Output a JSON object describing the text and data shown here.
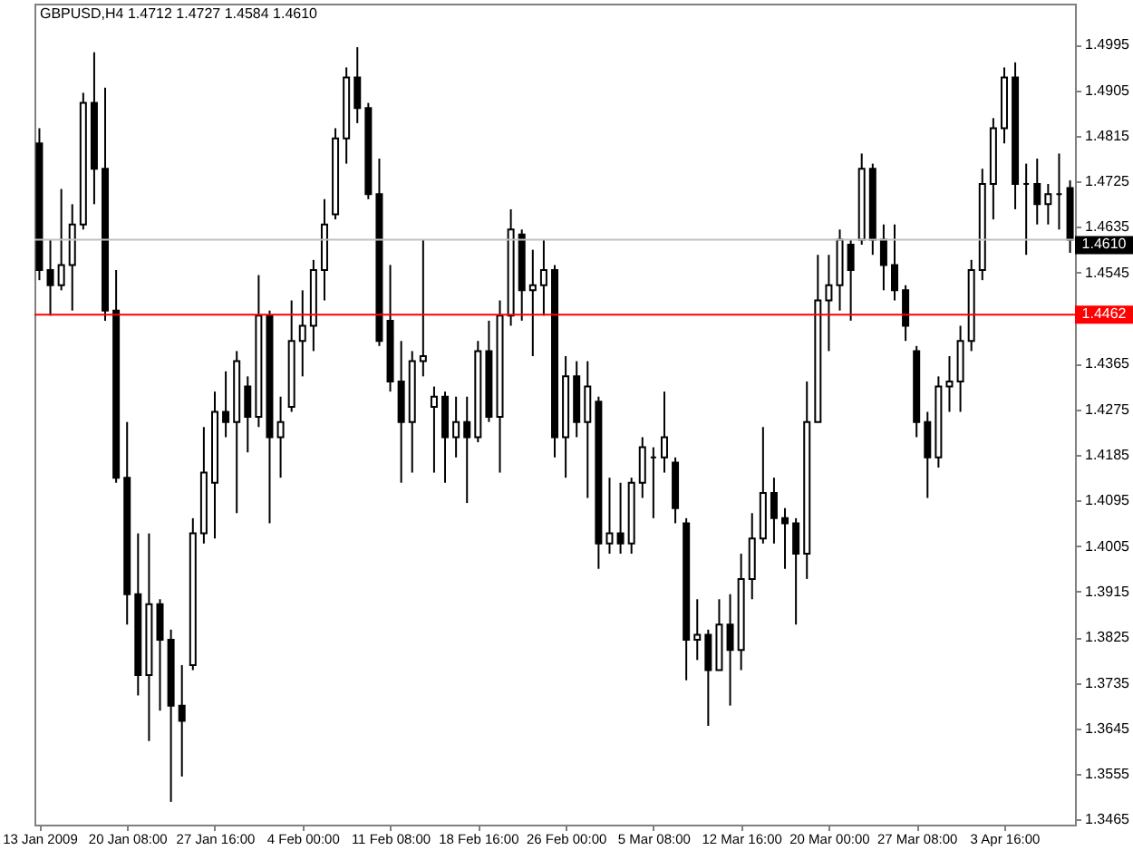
{
  "chart_data": {
    "type": "candlestick",
    "title": "GBPUSD,H4 1.4712 1.4727 1.4584 1.4610",
    "color": "#000000",
    "grid": false,
    "categories": [
      "13 Jan 2009",
      null,
      null,
      null,
      null,
      null,
      null,
      null,
      "20 Jan 08:00",
      null,
      null,
      null,
      null,
      null,
      null,
      null,
      "27 Jan 16:00",
      null,
      null,
      null,
      null,
      null,
      null,
      null,
      "4 Feb 00:00",
      null,
      null,
      null,
      null,
      null,
      null,
      null,
      "11 Feb 08:00",
      null,
      null,
      null,
      null,
      null,
      null,
      null,
      "18 Feb 16:00",
      null,
      null,
      null,
      null,
      null,
      null,
      null,
      "26 Feb 00:00",
      null,
      null,
      null,
      null,
      null,
      null,
      null,
      "5 Mar 08:00",
      null,
      null,
      null,
      null,
      null,
      null,
      null,
      "12 Mar 16:00",
      null,
      null,
      null,
      null,
      null,
      null,
      null,
      "20 Mar 00:00",
      null,
      null,
      null,
      null,
      null,
      null,
      null,
      "27 Mar 08:00",
      null,
      null,
      null,
      null,
      null,
      null,
      null,
      "3 Apr 16:00",
      null,
      null,
      null,
      null,
      null,
      null
    ],
    "ohlc": [
      [
        1.48,
        1.483,
        1.453,
        1.455
      ],
      [
        1.455,
        1.461,
        1.446,
        1.452
      ],
      [
        1.452,
        1.471,
        1.451,
        1.456
      ],
      [
        1.456,
        1.468,
        1.447,
        1.464
      ],
      [
        1.464,
        1.49,
        1.463,
        1.488
      ],
      [
        1.488,
        1.498,
        1.468,
        1.475
      ],
      [
        1.475,
        1.491,
        1.445,
        1.447
      ],
      [
        1.447,
        1.455,
        1.413,
        1.414
      ],
      [
        1.414,
        1.425,
        1.385,
        1.391
      ],
      [
        1.391,
        1.403,
        1.371,
        1.375
      ],
      [
        1.375,
        1.403,
        1.362,
        1.389
      ],
      [
        1.389,
        1.39,
        1.368,
        1.382
      ],
      [
        1.382,
        1.384,
        1.35,
        1.369
      ],
      [
        1.369,
        1.377,
        1.355,
        1.366
      ],
      [
        1.377,
        1.406,
        1.376,
        1.403
      ],
      [
        1.403,
        1.424,
        1.401,
        1.415
      ],
      [
        1.413,
        1.431,
        1.402,
        1.427
      ],
      [
        1.427,
        1.435,
        1.422,
        1.425
      ],
      [
        1.425,
        1.439,
        1.407,
        1.437
      ],
      [
        1.432,
        1.434,
        1.419,
        1.426
      ],
      [
        1.426,
        1.454,
        1.424,
        1.446
      ],
      [
        1.446,
        1.447,
        1.405,
        1.422
      ],
      [
        1.422,
        1.43,
        1.414,
        1.425
      ],
      [
        1.428,
        1.449,
        1.427,
        1.441
      ],
      [
        1.441,
        1.451,
        1.434,
        1.444
      ],
      [
        1.444,
        1.457,
        1.439,
        1.455
      ],
      [
        1.455,
        1.469,
        1.449,
        1.464
      ],
      [
        1.466,
        1.483,
        1.465,
        1.481
      ],
      [
        1.481,
        1.495,
        1.476,
        1.493
      ],
      [
        1.493,
        1.499,
        1.484,
        1.487
      ],
      [
        1.487,
        1.488,
        1.469,
        1.47
      ],
      [
        1.47,
        1.477,
        1.44,
        1.441
      ],
      [
        1.445,
        1.456,
        1.431,
        1.433
      ],
      [
        1.433,
        1.441,
        1.413,
        1.425
      ],
      [
        1.425,
        1.439,
        1.415,
        1.437
      ],
      [
        1.437,
        1.461,
        1.434,
        1.438
      ],
      [
        1.428,
        1.432,
        1.415,
        1.43
      ],
      [
        1.43,
        1.431,
        1.413,
        1.422
      ],
      [
        1.422,
        1.43,
        1.418,
        1.425
      ],
      [
        1.425,
        1.43,
        1.409,
        1.422
      ],
      [
        1.422,
        1.441,
        1.421,
        1.439
      ],
      [
        1.439,
        1.445,
        1.425,
        1.426
      ],
      [
        1.426,
        1.449,
        1.415,
        1.446
      ],
      [
        1.446,
        1.467,
        1.444,
        1.463
      ],
      [
        1.462,
        1.463,
        1.445,
        1.451
      ],
      [
        1.451,
        1.459,
        1.438,
        1.452
      ],
      [
        1.452,
        1.461,
        1.446,
        1.455
      ],
      [
        1.455,
        1.456,
        1.418,
        1.422
      ],
      [
        1.422,
        1.438,
        1.414,
        1.434
      ],
      [
        1.434,
        1.437,
        1.422,
        1.425
      ],
      [
        1.425,
        1.437,
        1.41,
        1.432
      ],
      [
        1.429,
        1.43,
        1.396,
        1.401
      ],
      [
        1.401,
        1.414,
        1.399,
        1.403
      ],
      [
        1.403,
        1.413,
        1.399,
        1.401
      ],
      [
        1.401,
        1.414,
        1.399,
        1.413
      ],
      [
        1.413,
        1.422,
        1.41,
        1.42
      ],
      [
        1.418,
        1.42,
        1.406,
        1.418
      ],
      [
        1.418,
        1.431,
        1.415,
        1.422
      ],
      [
        1.417,
        1.418,
        1.405,
        1.408
      ],
      [
        1.405,
        1.406,
        1.374,
        1.382
      ],
      [
        1.382,
        1.39,
        1.378,
        1.383
      ],
      [
        1.383,
        1.384,
        1.365,
        1.376
      ],
      [
        1.376,
        1.39,
        1.376,
        1.385
      ],
      [
        1.385,
        1.391,
        1.369,
        1.38
      ],
      [
        1.38,
        1.399,
        1.376,
        1.394
      ],
      [
        1.394,
        1.407,
        1.39,
        1.402
      ],
      [
        1.402,
        1.424,
        1.401,
        1.411
      ],
      [
        1.411,
        1.414,
        1.401,
        1.406
      ],
      [
        1.406,
        1.408,
        1.396,
        1.405
      ],
      [
        1.405,
        1.406,
        1.385,
        1.399
      ],
      [
        1.399,
        1.433,
        1.394,
        1.425
      ],
      [
        1.425,
        1.458,
        1.425,
        1.449
      ],
      [
        1.449,
        1.458,
        1.439,
        1.452
      ],
      [
        1.452,
        1.463,
        1.447,
        1.461
      ],
      [
        1.46,
        1.461,
        1.445,
        1.455
      ],
      [
        1.461,
        1.478,
        1.46,
        1.475
      ],
      [
        1.475,
        1.476,
        1.458,
        1.461
      ],
      [
        1.461,
        1.464,
        1.451,
        1.456
      ],
      [
        1.456,
        1.464,
        1.449,
        1.451
      ],
      [
        1.451,
        1.452,
        1.441,
        1.444
      ],
      [
        1.439,
        1.44,
        1.422,
        1.425
      ],
      [
        1.425,
        1.427,
        1.41,
        1.418
      ],
      [
        1.418,
        1.434,
        1.416,
        1.432
      ],
      [
        1.432,
        1.438,
        1.427,
        1.433
      ],
      [
        1.433,
        1.444,
        1.427,
        1.441
      ],
      [
        1.441,
        1.457,
        1.439,
        1.455
      ],
      [
        1.455,
        1.475,
        1.453,
        1.472
      ],
      [
        1.472,
        1.485,
        1.465,
        1.483
      ],
      [
        1.483,
        1.495,
        1.48,
        1.493
      ],
      [
        1.493,
        1.496,
        1.467,
        1.472
      ],
      [
        1.472,
        1.476,
        1.458,
        1.472
      ],
      [
        1.472,
        1.477,
        1.464,
        1.468
      ],
      [
        1.468,
        1.472,
        1.464,
        1.47
      ],
      [
        1.47,
        1.478,
        1.463,
        1.47
      ],
      [
        1.4712,
        1.4727,
        1.4584,
        1.461
      ]
    ],
    "ylim": [
      1.3455,
      1.5076
    ],
    "yticks": [
      1.3465,
      1.3555,
      1.3645,
      1.3735,
      1.3825,
      1.3915,
      1.4005,
      1.4095,
      1.4185,
      1.4275,
      1.4365,
      {
        "value": 1.4455,
        "label": null
      },
      1.4545,
      1.4635,
      1.4725,
      1.4815,
      1.4905,
      1.4995
    ],
    "ref_lines": [
      {
        "axis": "y",
        "value": 1.461,
        "label": "1.4610",
        "color": "#c0c0c0"
      },
      {
        "axis": "y",
        "value": 1.4462,
        "label": "1.4462",
        "color": "#ff0000"
      }
    ]
  }
}
